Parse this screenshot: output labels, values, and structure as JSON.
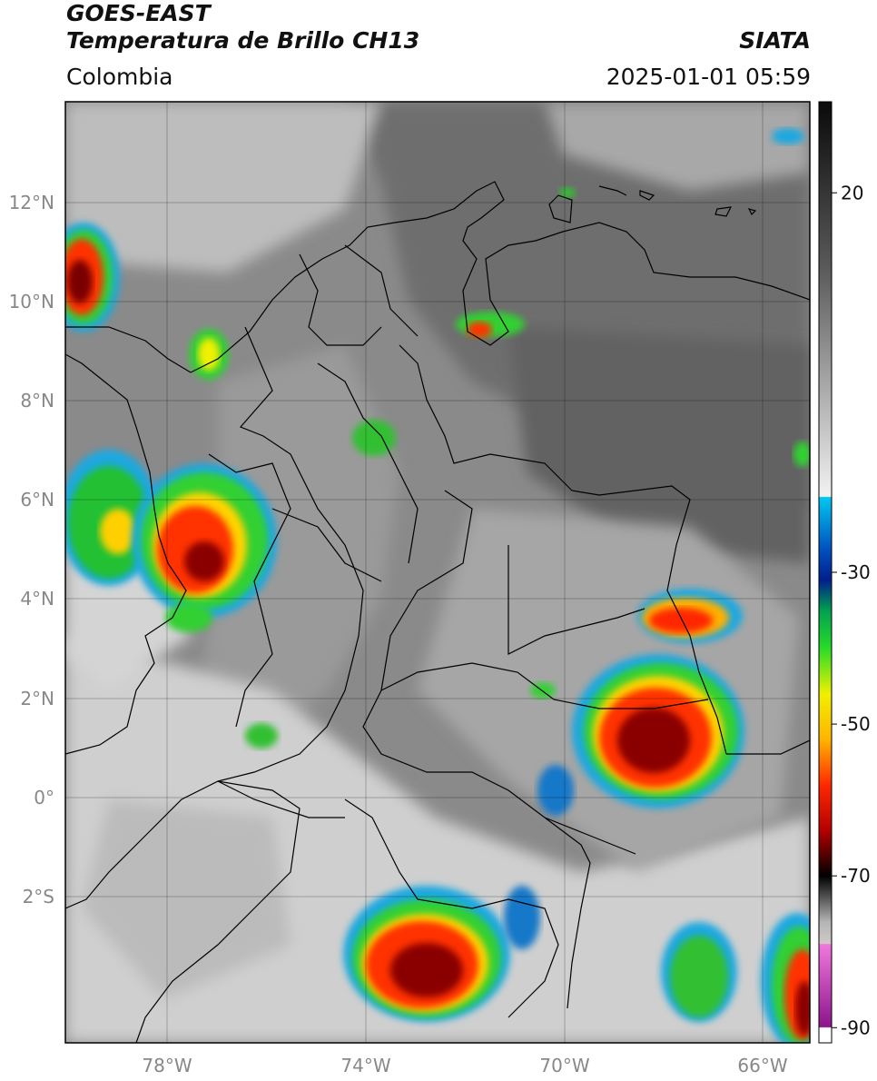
{
  "header": {
    "satellite": "GOES-EAST",
    "product": "Temperatura de Brillo CH13",
    "agency": "SIATA",
    "region": "Colombia",
    "datetime": "2025-01-01 05:59"
  },
  "map": {
    "lat_ticks": [
      "12°N",
      "10°N",
      "8°N",
      "6°N",
      "4°N",
      "2°N",
      "0°",
      "2°S"
    ],
    "lon_ticks": [
      "78°W",
      "74°W",
      "70°W",
      "66°W"
    ],
    "lon_range": [
      -80,
      -65
    ],
    "lat_range": [
      -5,
      14
    ],
    "grid": true
  },
  "colorbar": {
    "ticks": [
      "20",
      "-30",
      "-50",
      "-70",
      "-90"
    ],
    "tick_values": [
      20,
      -30,
      -50,
      -70,
      -90
    ],
    "range": [
      -92,
      32
    ],
    "stops": [
      {
        "v": 32,
        "color": "#0a0a0a"
      },
      {
        "v": 10,
        "color": "#5a5a5a"
      },
      {
        "v": -20,
        "color": "#f2f2f2"
      },
      {
        "v": -20.1,
        "color": "#00c8f0"
      },
      {
        "v": -27,
        "color": "#0050c0"
      },
      {
        "v": -31,
        "color": "#001e8c"
      },
      {
        "v": -35,
        "color": "#00a050"
      },
      {
        "v": -40,
        "color": "#28dc28"
      },
      {
        "v": -46,
        "color": "#f0f000"
      },
      {
        "v": -52,
        "color": "#ffb400"
      },
      {
        "v": -58,
        "color": "#ff2800"
      },
      {
        "v": -64,
        "color": "#b40000"
      },
      {
        "v": -68,
        "color": "#3c0000"
      },
      {
        "v": -70,
        "color": "#000000"
      },
      {
        "v": -76,
        "color": "#b4b4b4"
      },
      {
        "v": -78.9,
        "color": "#d2c8c8"
      },
      {
        "v": -79,
        "color": "#f078dc"
      },
      {
        "v": -89.9,
        "color": "#8c148c"
      },
      {
        "v": -90,
        "color": "#ffffff"
      }
    ]
  }
}
